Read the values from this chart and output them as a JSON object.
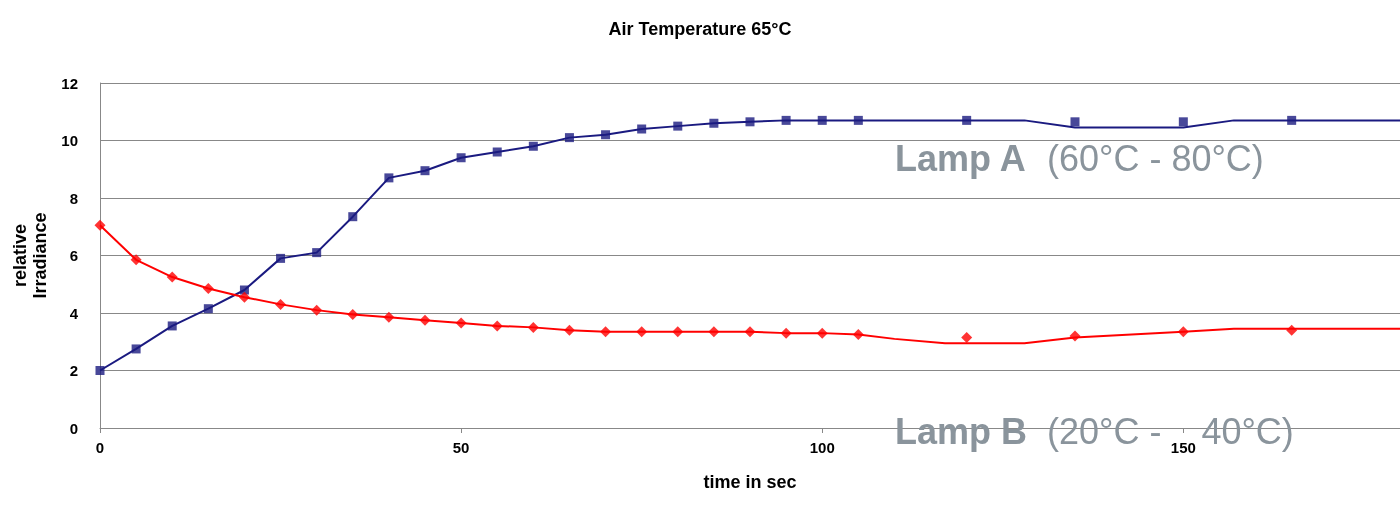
{
  "chart_data": {
    "type": "line",
    "title": "Air Temperature 65°C",
    "xlabel": "time in sec",
    "ylabel": "relative\nIrradiance",
    "xlim": [
      0,
      180
    ],
    "xticks": [
      0,
      50,
      100,
      150
    ],
    "ylim": [
      0,
      12
    ],
    "yticks": [
      0,
      2,
      4,
      6,
      8,
      10,
      12
    ],
    "grid": "y",
    "annotations": [
      "Lamp A  (60°C - 80°C)",
      "Lamp B  (20°C -    40°C)"
    ],
    "series": [
      {
        "color": "#1a1a80",
        "marker": "none",
        "x": [
          0,
          5,
          10,
          15,
          20,
          25,
          30,
          35,
          40,
          45,
          50,
          55,
          60,
          65,
          70,
          75,
          80,
          85,
          90,
          95,
          100,
          105,
          120,
          128,
          135,
          150,
          157,
          165,
          180
        ],
        "values": [
          2,
          2.75,
          3.55,
          4.15,
          4.8,
          5.9,
          6.1,
          7.35,
          8.7,
          8.95,
          9.4,
          9.6,
          9.8,
          10.1,
          10.2,
          10.4,
          10.5,
          10.6,
          10.65,
          10.7,
          10.7,
          10.7,
          10.7,
          10.7,
          10.45,
          10.45,
          10.7,
          10.7,
          10.7
        ]
      },
      {
        "color": "#ff0000",
        "marker": "none",
        "x": [
          0,
          5,
          10,
          15,
          20,
          25,
          30,
          35,
          40,
          45,
          50,
          55,
          60,
          65,
          70,
          75,
          80,
          85,
          90,
          95,
          100,
          105,
          110,
          117,
          128,
          135,
          150,
          157,
          165,
          180
        ],
        "values": [
          7.05,
          5.85,
          5.25,
          4.85,
          4.55,
          4.3,
          4.1,
          3.95,
          3.85,
          3.75,
          3.65,
          3.55,
          3.5,
          3.4,
          3.35,
          3.35,
          3.35,
          3.35,
          3.35,
          3.3,
          3.3,
          3.25,
          3.1,
          2.95,
          2.95,
          3.15,
          3.35,
          3.45,
          3.45,
          3.45
        ]
      },
      {
        "type": "scatter",
        "color": "#1a1a80",
        "marker": "square",
        "x": [
          0,
          5,
          10,
          15,
          20,
          25,
          30,
          35,
          40,
          45,
          50,
          55,
          60,
          65,
          70,
          75,
          80,
          85,
          90,
          95,
          100,
          105,
          120,
          135,
          150,
          165
        ],
        "values": [
          2,
          2.75,
          3.55,
          4.15,
          4.8,
          5.9,
          6.1,
          7.35,
          8.7,
          8.95,
          9.4,
          9.6,
          9.8,
          10.1,
          10.2,
          10.4,
          10.5,
          10.6,
          10.65,
          10.7,
          10.7,
          10.7,
          10.7,
          10.65,
          10.65,
          10.7
        ]
      },
      {
        "type": "scatter",
        "color": "#ff0000",
        "marker": "diamond",
        "x": [
          0,
          5,
          10,
          15,
          20,
          25,
          30,
          35,
          40,
          45,
          50,
          55,
          60,
          65,
          70,
          75,
          80,
          85,
          90,
          95,
          100,
          105,
          120,
          135,
          150,
          165
        ],
        "values": [
          7.05,
          5.85,
          5.25,
          4.85,
          4.55,
          4.3,
          4.1,
          3.95,
          3.85,
          3.75,
          3.65,
          3.55,
          3.5,
          3.4,
          3.35,
          3.35,
          3.35,
          3.35,
          3.35,
          3.3,
          3.3,
          3.25,
          3.15,
          3.2,
          3.35,
          3.4
        ]
      }
    ]
  }
}
